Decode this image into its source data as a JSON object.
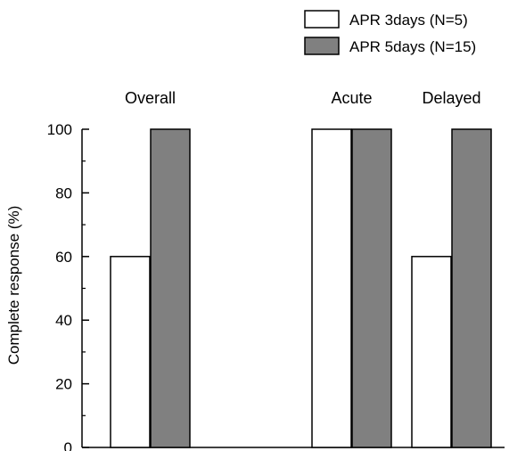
{
  "chart_data": {
    "type": "bar",
    "categories": [
      "Overall",
      "Acute",
      "Delayed"
    ],
    "series": [
      {
        "name": "APR 3days (N=5)",
        "values": [
          60,
          100,
          60
        ],
        "color": "#ffffff"
      },
      {
        "name": "APR 5days (N=15)",
        "values": [
          100,
          100,
          100
        ],
        "color": "#808080"
      }
    ],
    "ylabel": "Complete response (%)",
    "xlabel": "",
    "ylim": [
      0,
      100
    ],
    "yticks": [
      "0",
      "20",
      "40",
      "60",
      "80",
      "100"
    ],
    "legend_position": "top-right",
    "grid": false
  }
}
